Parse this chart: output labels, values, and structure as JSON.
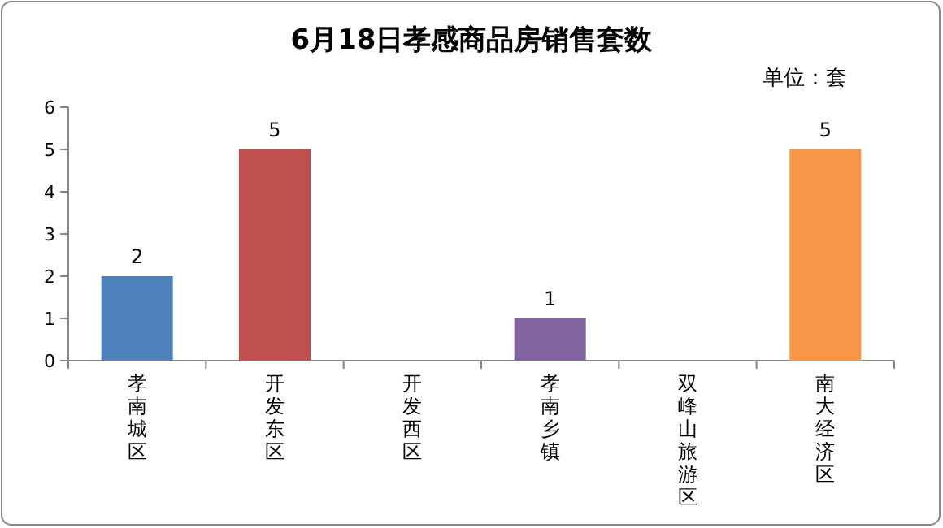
{
  "chart_data": {
    "type": "bar",
    "title": "6月18日孝感商品房销售套数",
    "annotations": [
      "单位：套"
    ],
    "categories": [
      "孝南城区",
      "开发东区",
      "开发西区",
      "孝南乡镇",
      "双峰山旅游区",
      "南大经济区"
    ],
    "values": [
      2,
      5,
      0,
      1,
      0,
      5
    ],
    "colors": [
      "#4f81bd",
      "#c0504d",
      "#9bbb59",
      "#8064a2",
      "#4bacc6",
      "#f79646"
    ],
    "value_labels": [
      "2",
      "5",
      null,
      "1",
      null,
      "5"
    ],
    "ylim": [
      0,
      6
    ],
    "yticks": [
      0,
      1,
      2,
      3,
      4,
      5,
      6
    ],
    "grid": false
  }
}
